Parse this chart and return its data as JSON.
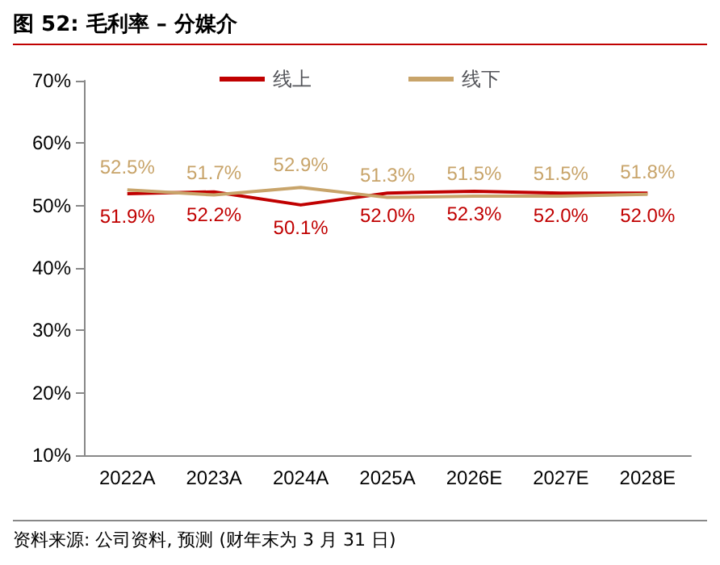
{
  "chart_data": {
    "type": "line",
    "title": "图 52: 毛利率 – 分媒介",
    "annotations": [
      "资料来源: 公司资料, 预测 (财年末为 3 月 31 日)"
    ],
    "categories": [
      "2022A",
      "2023A",
      "2024A",
      "2025A",
      "2026E",
      "2027E",
      "2028E"
    ],
    "series": [
      {
        "name": "线上",
        "color": "#c00000",
        "values": [
          51.9,
          52.2,
          50.1,
          52.0,
          52.3,
          52.0,
          52.0
        ],
        "value_labels": [
          "51.9%",
          "52.2%",
          "50.1%",
          "52.0%",
          "52.3%",
          "52.0%",
          "52.0%"
        ]
      },
      {
        "name": "线下",
        "color": "#c8a46a",
        "values": [
          52.5,
          51.7,
          52.9,
          51.3,
          51.5,
          51.5,
          51.8
        ],
        "value_labels": [
          "52.5%",
          "51.7%",
          "52.9%",
          "51.3%",
          "51.5%",
          "51.5%",
          "51.8%"
        ]
      }
    ],
    "ylim": [
      10,
      70
    ],
    "yticks": [
      {
        "value": 10,
        "label": "10%"
      },
      {
        "value": 20,
        "label": "20%"
      },
      {
        "value": 30,
        "label": "30%"
      },
      {
        "value": 40,
        "label": "40%"
      },
      {
        "value": 50,
        "label": "50%"
      },
      {
        "value": 60,
        "label": "60%"
      },
      {
        "value": 70,
        "label": "70%"
      }
    ],
    "grid": false,
    "legend": "top",
    "marker": "none",
    "line_style": "solid"
  }
}
